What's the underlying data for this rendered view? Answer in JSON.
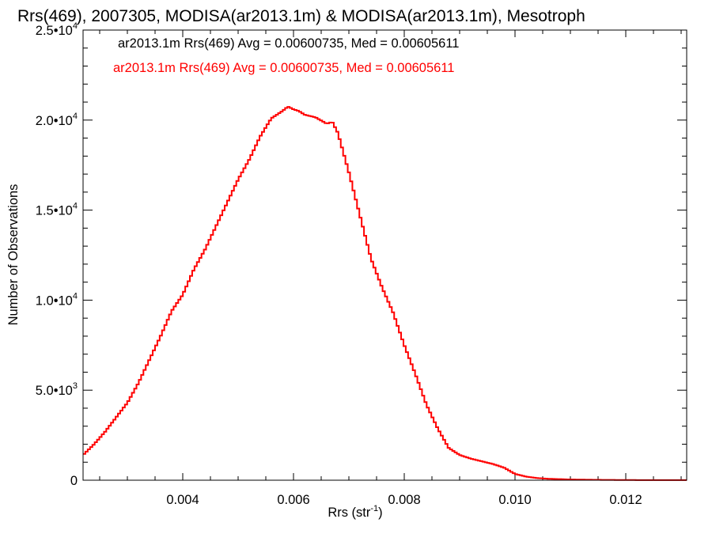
{
  "chart_data": {
    "type": "line",
    "title": "Rrs(469), 2007305, MODISA(ar2013.1m) & MODISA(ar2013.1m), Mesotroph",
    "xlabel_main": "Rrs (str",
    "xlabel_sup": "-1",
    "xlabel_end": ")",
    "ylabel": "Number of Observations",
    "xlim": [
      0.0022,
      0.0131
    ],
    "ylim": [
      0,
      25000
    ],
    "xticks": [
      {
        "value": 0.004,
        "label": "0.004"
      },
      {
        "value": 0.006,
        "label": "0.006"
      },
      {
        "value": 0.008,
        "label": "0.008"
      },
      {
        "value": 0.01,
        "label": "0.010"
      },
      {
        "value": 0.012,
        "label": "0.012"
      }
    ],
    "yticks": [
      {
        "value": 0,
        "label": "0",
        "sup": ""
      },
      {
        "value": 5000,
        "label": "5.0•10",
        "sup": "3"
      },
      {
        "value": 10000,
        "label": "1.0•10",
        "sup": "4"
      },
      {
        "value": 15000,
        "label": "1.5•10",
        "sup": "4"
      },
      {
        "value": 20000,
        "label": "2.0•10",
        "sup": "4"
      },
      {
        "value": 25000,
        "label": "2.5•10",
        "sup": "4"
      }
    ],
    "legend": [
      {
        "text": "ar2013.1m Rrs(469) Avg = 0.00600735, Med = 0.00605611",
        "color": "#000000"
      },
      {
        "text": "ar2013.1m Rrs(469) Avg = 0.00600735, Med = 0.00605611",
        "color": "#ff0000"
      }
    ],
    "legend_position": "top-left",
    "series": [
      {
        "color": "#ff0000",
        "step": true,
        "x": [
          0.0022,
          0.0024,
          0.0026,
          0.0028,
          0.003,
          0.0032,
          0.0034,
          0.0036,
          0.0038,
          0.004,
          0.0042,
          0.0044,
          0.0046,
          0.0048,
          0.005,
          0.0052,
          0.0054,
          0.0056,
          0.0058,
          0.0059,
          0.006,
          0.0061,
          0.0062,
          0.0064,
          0.0066,
          0.0067,
          0.0068,
          0.007,
          0.0072,
          0.0074,
          0.0076,
          0.0078,
          0.008,
          0.0082,
          0.0084,
          0.0086,
          0.0088,
          0.009,
          0.0092,
          0.0094,
          0.0096,
          0.0098,
          0.01,
          0.0102,
          0.0104,
          0.0106,
          0.011,
          0.0115,
          0.012,
          0.0125,
          0.0131
        ],
        "y": [
          1400,
          2000,
          2700,
          3500,
          4300,
          5400,
          6700,
          8000,
          9400,
          10300,
          11700,
          12800,
          14100,
          15400,
          16700,
          17800,
          19100,
          20100,
          20500,
          20750,
          20600,
          20500,
          20300,
          20150,
          19800,
          19900,
          19300,
          17100,
          14700,
          12300,
          10700,
          9300,
          7500,
          5900,
          4200,
          2900,
          1800,
          1400,
          1200,
          1050,
          900,
          700,
          350,
          200,
          120,
          80,
          40,
          20,
          10,
          5,
          5
        ]
      }
    ]
  }
}
